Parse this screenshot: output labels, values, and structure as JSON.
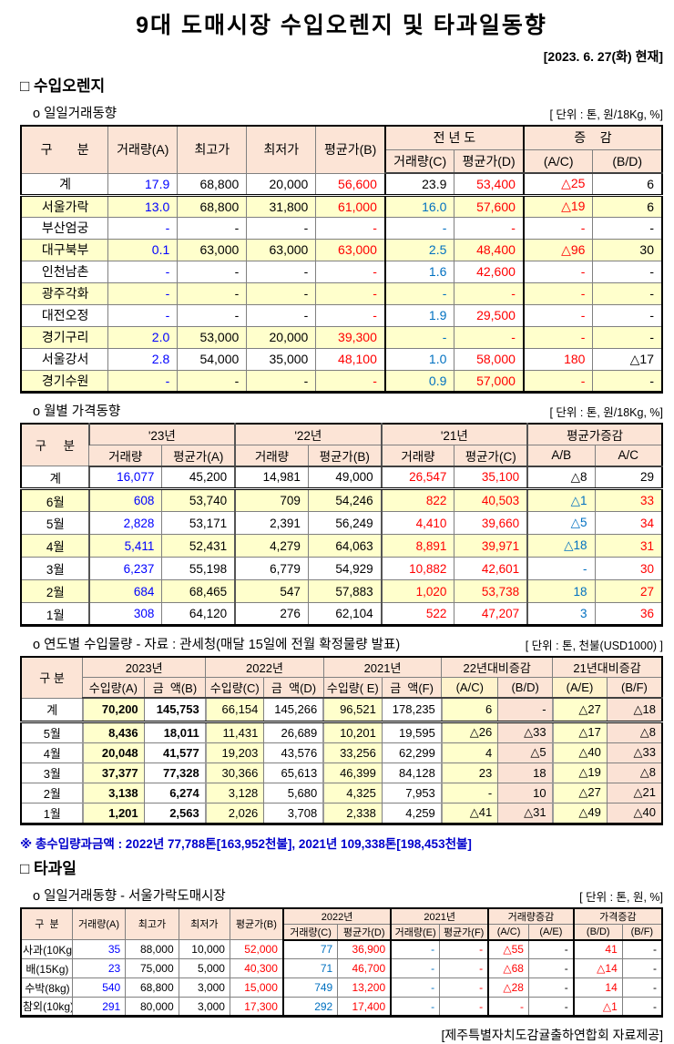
{
  "page": {
    "title": "9대 도매시장 수입오렌지 및 타과일동향",
    "date": "[2023. 6. 27(화) 현재]",
    "provider": "[제주특별자치도감귤출하연합회 자료제공]"
  },
  "sections": {
    "orange_heading": "□ 수입오렌지",
    "fruit_heading": "□ 타과일"
  },
  "daily": {
    "title": "o 일일거래동향",
    "unit": "[ 단위 : 톤, 원/18Kg, %]",
    "h": {
      "gubun": "구       분",
      "volA": "거래량(A)",
      "high": "최고가",
      "low": "최저가",
      "avgB": "평균가(B)",
      "prev": "전 년 도",
      "chg": "증    감",
      "volC": "거래량(C)",
      "avgD": "평균가(D)",
      "ac": "(A/C)",
      "bd": "(B/D)"
    },
    "rows": [
      [
        [
          "계",
          "k"
        ],
        [
          "17.9",
          "b"
        ],
        [
          "68,800",
          "k"
        ],
        [
          "20,000",
          "k"
        ],
        [
          "56,600",
          "r"
        ],
        [
          "23.9",
          "k"
        ],
        [
          "53,400",
          "r"
        ],
        [
          "△25",
          "r"
        ],
        [
          "6",
          "k"
        ]
      ],
      [
        [
          "서울가락",
          "k"
        ],
        [
          "13.0",
          "b"
        ],
        [
          "68,800",
          "k"
        ],
        [
          "31,800",
          "k"
        ],
        [
          "61,000",
          "r"
        ],
        [
          "16.0",
          "c"
        ],
        [
          "57,600",
          "r"
        ],
        [
          "△19",
          "r"
        ],
        [
          "6",
          "k"
        ]
      ],
      [
        [
          "부산엄궁",
          "k"
        ],
        [
          "-",
          "b"
        ],
        [
          "-",
          "k"
        ],
        [
          "-",
          "k"
        ],
        [
          "-",
          "r"
        ],
        [
          "-",
          "c"
        ],
        [
          "-",
          "r"
        ],
        [
          "-",
          "r"
        ],
        [
          "-",
          "k"
        ]
      ],
      [
        [
          "대구북부",
          "k"
        ],
        [
          "0.1",
          "b"
        ],
        [
          "63,000",
          "k"
        ],
        [
          "63,000",
          "k"
        ],
        [
          "63,000",
          "r"
        ],
        [
          "2.5",
          "c"
        ],
        [
          "48,400",
          "r"
        ],
        [
          "△96",
          "r"
        ],
        [
          "30",
          "k"
        ]
      ],
      [
        [
          "인천남촌",
          "k"
        ],
        [
          "-",
          "b"
        ],
        [
          "-",
          "k"
        ],
        [
          "-",
          "k"
        ],
        [
          "-",
          "r"
        ],
        [
          "1.6",
          "c"
        ],
        [
          "42,600",
          "r"
        ],
        [
          "-",
          "r"
        ],
        [
          "-",
          "k"
        ]
      ],
      [
        [
          "광주각화",
          "k"
        ],
        [
          "-",
          "b"
        ],
        [
          "-",
          "k"
        ],
        [
          "-",
          "k"
        ],
        [
          "-",
          "r"
        ],
        [
          "-",
          "c"
        ],
        [
          "-",
          "r"
        ],
        [
          "-",
          "r"
        ],
        [
          "-",
          "k"
        ]
      ],
      [
        [
          "대전오정",
          "k"
        ],
        [
          "-",
          "b"
        ],
        [
          "-",
          "k"
        ],
        [
          "-",
          "k"
        ],
        [
          "-",
          "r"
        ],
        [
          "1.9",
          "c"
        ],
        [
          "29,500",
          "r"
        ],
        [
          "-",
          "r"
        ],
        [
          "-",
          "k"
        ]
      ],
      [
        [
          "경기구리",
          "k"
        ],
        [
          "2.0",
          "b"
        ],
        [
          "53,000",
          "k"
        ],
        [
          "20,000",
          "k"
        ],
        [
          "39,300",
          "r"
        ],
        [
          "-",
          "c"
        ],
        [
          "-",
          "r"
        ],
        [
          "-",
          "r"
        ],
        [
          "-",
          "k"
        ]
      ],
      [
        [
          "서울강서",
          "k"
        ],
        [
          "2.8",
          "b"
        ],
        [
          "54,000",
          "k"
        ],
        [
          "35,000",
          "k"
        ],
        [
          "48,100",
          "r"
        ],
        [
          "1.0",
          "c"
        ],
        [
          "58,000",
          "r"
        ],
        [
          "180",
          "r"
        ],
        [
          "△17",
          "k"
        ]
      ],
      [
        [
          "경기수원",
          "k"
        ],
        [
          "-",
          "b"
        ],
        [
          "-",
          "k"
        ],
        [
          "-",
          "k"
        ],
        [
          "-",
          "r"
        ],
        [
          "0.9",
          "c"
        ],
        [
          "57,000",
          "r"
        ],
        [
          "-",
          "r"
        ],
        [
          "-",
          "k"
        ]
      ]
    ]
  },
  "monthly": {
    "title": "o 월별 가격동향",
    "unit": "[ 단위 : 톤, 원/18Kg, %]",
    "h": {
      "gubun": "구     분",
      "y23": "'23년",
      "y22": "'22년",
      "y21": "'21년",
      "chg": "평균가증감",
      "vol": "거래량",
      "avgA": "평균가(A)",
      "avgB": "평균가(B)",
      "avgC": "평균가(C)",
      "ab": "A/B",
      "ac": "A/C"
    },
    "rows": [
      [
        [
          "계",
          "k"
        ],
        [
          "16,077",
          "b"
        ],
        [
          "45,200",
          "k"
        ],
        [
          "14,981",
          "k"
        ],
        [
          "49,000",
          "k"
        ],
        [
          "26,547",
          "r"
        ],
        [
          "35,100",
          "r"
        ],
        [
          "△8",
          "k"
        ],
        [
          "29",
          "k"
        ]
      ],
      [
        [
          "6월",
          "k"
        ],
        [
          "608",
          "b"
        ],
        [
          "53,740",
          "k"
        ],
        [
          "709",
          "k"
        ],
        [
          "54,246",
          "k"
        ],
        [
          "822",
          "r"
        ],
        [
          "40,503",
          "r"
        ],
        [
          "△1",
          "c"
        ],
        [
          "33",
          "r"
        ]
      ],
      [
        [
          "5월",
          "k"
        ],
        [
          "2,828",
          "b"
        ],
        [
          "53,171",
          "k"
        ],
        [
          "2,391",
          "k"
        ],
        [
          "56,249",
          "k"
        ],
        [
          "4,410",
          "r"
        ],
        [
          "39,660",
          "r"
        ],
        [
          "△5",
          "c"
        ],
        [
          "34",
          "r"
        ]
      ],
      [
        [
          "4월",
          "k"
        ],
        [
          "5,411",
          "b"
        ],
        [
          "52,431",
          "k"
        ],
        [
          "4,279",
          "k"
        ],
        [
          "64,063",
          "k"
        ],
        [
          "8,891",
          "r"
        ],
        [
          "39,971",
          "r"
        ],
        [
          "△18",
          "c"
        ],
        [
          "31",
          "r"
        ]
      ],
      [
        [
          "3월",
          "k"
        ],
        [
          "6,237",
          "b"
        ],
        [
          "55,198",
          "k"
        ],
        [
          "6,779",
          "k"
        ],
        [
          "54,929",
          "k"
        ],
        [
          "10,882",
          "r"
        ],
        [
          "42,601",
          "r"
        ],
        [
          "-",
          "c"
        ],
        [
          "30",
          "r"
        ]
      ],
      [
        [
          "2월",
          "k"
        ],
        [
          "684",
          "b"
        ],
        [
          "68,465",
          "k"
        ],
        [
          "547",
          "k"
        ],
        [
          "57,883",
          "k"
        ],
        [
          "1,020",
          "r"
        ],
        [
          "53,738",
          "r"
        ],
        [
          "18",
          "c"
        ],
        [
          "27",
          "r"
        ]
      ],
      [
        [
          "1월",
          "k"
        ],
        [
          "308",
          "b"
        ],
        [
          "64,120",
          "k"
        ],
        [
          "276",
          "k"
        ],
        [
          "62,104",
          "k"
        ],
        [
          "522",
          "r"
        ],
        [
          "47,207",
          "r"
        ],
        [
          "3",
          "c"
        ],
        [
          "36",
          "r"
        ]
      ]
    ]
  },
  "yearly": {
    "title": "o 연도별 수입물량 - 자료 : 관세청(매달 15일에 전월 확정물량 발표)",
    "unit": "[ 단위 : 톤, 천불(USD1000) ]",
    "h": {
      "gubun": "구 분",
      "y2023": "2023년",
      "y2022": "2022년",
      "y2021": "2021년",
      "d22": "22년대비증감",
      "d21": "21년대비증감",
      "impA": "수입량(A)",
      "amtB": "금  액(B)",
      "impC": "수입량(C)",
      "amtD": "금  액(D)",
      "impE": "수입량( E)",
      "amtF": "금  액(F)",
      "ac": "(A/C)",
      "bd": "(B/D)",
      "ae": "(A/E)",
      "bf": "(B/F)"
    },
    "rows": [
      [
        [
          "계",
          "k"
        ],
        [
          "70,200",
          "k"
        ],
        [
          "145,753",
          "k"
        ],
        [
          "66,154",
          "k"
        ],
        [
          "145,266",
          "k"
        ],
        [
          "96,521",
          "k"
        ],
        [
          "178,235",
          "k"
        ],
        [
          "6",
          "k"
        ],
        [
          "-",
          "k"
        ],
        [
          "△27",
          "k"
        ],
        [
          "△18",
          "k"
        ]
      ],
      [
        [
          "5월",
          "k"
        ],
        [
          "8,436",
          "k"
        ],
        [
          "18,011",
          "k"
        ],
        [
          "11,431",
          "k"
        ],
        [
          "26,689",
          "k"
        ],
        [
          "10,201",
          "k"
        ],
        [
          "19,595",
          "k"
        ],
        [
          "△26",
          "k"
        ],
        [
          "△33",
          "k"
        ],
        [
          "△17",
          "k"
        ],
        [
          "△8",
          "k"
        ]
      ],
      [
        [
          "4월",
          "k"
        ],
        [
          "20,048",
          "k"
        ],
        [
          "41,577",
          "k"
        ],
        [
          "19,203",
          "k"
        ],
        [
          "43,576",
          "k"
        ],
        [
          "33,256",
          "k"
        ],
        [
          "62,299",
          "k"
        ],
        [
          "4",
          "k"
        ],
        [
          "△5",
          "k"
        ],
        [
          "△40",
          "k"
        ],
        [
          "△33",
          "k"
        ]
      ],
      [
        [
          "3월",
          "k"
        ],
        [
          "37,377",
          "k"
        ],
        [
          "77,328",
          "k"
        ],
        [
          "30,366",
          "k"
        ],
        [
          "65,613",
          "k"
        ],
        [
          "46,399",
          "k"
        ],
        [
          "84,128",
          "k"
        ],
        [
          "23",
          "k"
        ],
        [
          "18",
          "k"
        ],
        [
          "△19",
          "k"
        ],
        [
          "△8",
          "k"
        ]
      ],
      [
        [
          "2월",
          "k"
        ],
        [
          "3,138",
          "k"
        ],
        [
          "6,274",
          "k"
        ],
        [
          "3,128",
          "k"
        ],
        [
          "5,680",
          "k"
        ],
        [
          "4,325",
          "k"
        ],
        [
          "7,953",
          "k"
        ],
        [
          "-",
          "k"
        ],
        [
          "10",
          "k"
        ],
        [
          "△27",
          "k"
        ],
        [
          "△21",
          "k"
        ]
      ],
      [
        [
          "1월",
          "k"
        ],
        [
          "1,201",
          "k"
        ],
        [
          "2,563",
          "k"
        ],
        [
          "2,026",
          "k"
        ],
        [
          "3,708",
          "k"
        ],
        [
          "2,338",
          "k"
        ],
        [
          "4,259",
          "k"
        ],
        [
          "△41",
          "k"
        ],
        [
          "△31",
          "k"
        ],
        [
          "△49",
          "k"
        ],
        [
          "△40",
          "k"
        ]
      ]
    ],
    "note": "※ 총수입량과금액 : 2022년 77,788톤[163,952천불],  2021년 109,338톤[198,453천불]"
  },
  "fruit": {
    "title": "o 일일거래동향 - 서울가락도매시장",
    "unit": "[ 단위 : 톤, 원, %]",
    "h": {
      "gubun": "구  분",
      "volA": "거래량(A)",
      "high": "최고가",
      "low": "최저가",
      "avgB": "평균가(B)",
      "y2022": "2022년",
      "y2021": "2021년",
      "volchg": "거래량증감",
      "prcchg": "가격증감",
      "volC": "거래량(C)",
      "avgD": "평균가(D)",
      "volE": "거래량(E)",
      "avgF": "평균가(F)",
      "ac": "(A/C)",
      "ae": "(A/E)",
      "bd": "(B/D)",
      "bf": "(B/F)"
    },
    "rows": [
      [
        [
          "사과(10Kg)",
          "k"
        ],
        [
          "35",
          "b"
        ],
        [
          "88,000",
          "k"
        ],
        [
          "10,000",
          "k"
        ],
        [
          "52,000",
          "r"
        ],
        [
          "77",
          "c"
        ],
        [
          "36,900",
          "r"
        ],
        [
          "-",
          "c"
        ],
        [
          "-",
          "r"
        ],
        [
          "△55",
          "r"
        ],
        [
          "-",
          "k"
        ],
        [
          "41",
          "r"
        ],
        [
          "-",
          "k"
        ]
      ],
      [
        [
          "배(15Kg)",
          "k"
        ],
        [
          "23",
          "b"
        ],
        [
          "75,000",
          "k"
        ],
        [
          "5,000",
          "k"
        ],
        [
          "40,300",
          "r"
        ],
        [
          "71",
          "c"
        ],
        [
          "46,700",
          "r"
        ],
        [
          "-",
          "c"
        ],
        [
          "-",
          "r"
        ],
        [
          "△68",
          "r"
        ],
        [
          "-",
          "k"
        ],
        [
          "△14",
          "r"
        ],
        [
          "-",
          "k"
        ]
      ],
      [
        [
          "수박(8kg)",
          "k"
        ],
        [
          "540",
          "b"
        ],
        [
          "68,800",
          "k"
        ],
        [
          "3,000",
          "k"
        ],
        [
          "15,000",
          "r"
        ],
        [
          "749",
          "c"
        ],
        [
          "13,200",
          "r"
        ],
        [
          "-",
          "c"
        ],
        [
          "-",
          "r"
        ],
        [
          "△28",
          "r"
        ],
        [
          "-",
          "k"
        ],
        [
          "14",
          "r"
        ],
        [
          "-",
          "k"
        ]
      ],
      [
        [
          "참외(10kg)",
          "k"
        ],
        [
          "291",
          "b"
        ],
        [
          "80,000",
          "k"
        ],
        [
          "3,000",
          "k"
        ],
        [
          "17,300",
          "r"
        ],
        [
          "292",
          "c"
        ],
        [
          "17,400",
          "r"
        ],
        [
          "-",
          "c"
        ],
        [
          "-",
          "r"
        ],
        [
          "-",
          "r"
        ],
        [
          "-",
          "k"
        ],
        [
          "△1",
          "r"
        ],
        [
          "-",
          "k"
        ]
      ]
    ]
  }
}
